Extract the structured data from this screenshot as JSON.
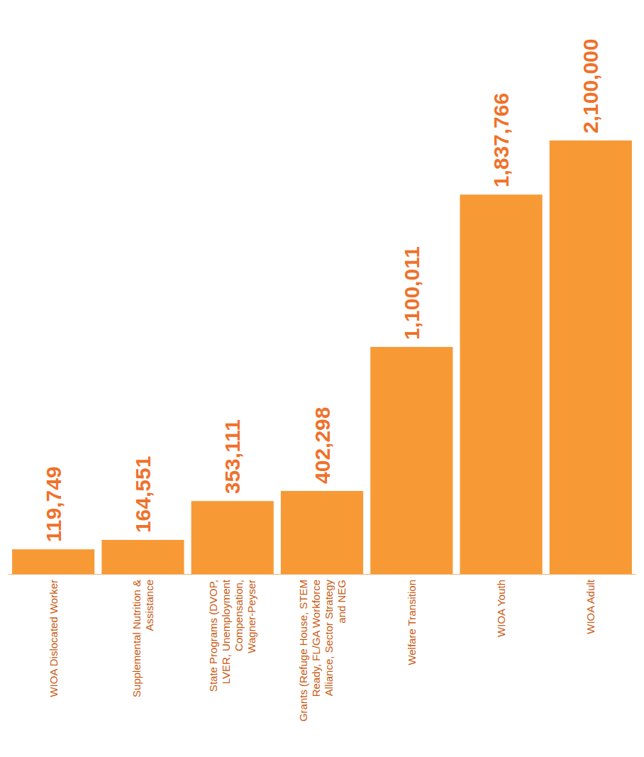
{
  "chart_data": {
    "type": "bar",
    "categories": [
      "WIOA Dislocated Worker",
      "Supplemental Nutrition & Assistance",
      "State Programs (DVOP, LVER, Unemployment Compensation, Wagner-Peyser",
      "Grants (Refuge House, STEM Ready, FL/GA Workforce Alliance, Sector Strategy and NEG",
      "Welfare Transition",
      "WIOA Youth",
      "WIOA Adult"
    ],
    "values": [
      119749,
      164551,
      353111,
      402298,
      1100011,
      1837766,
      2100000
    ],
    "value_labels": [
      "119,749",
      "164,551",
      "353,111",
      "402,298",
      "1,100,011",
      "1,837,766",
      "2,100,000"
    ],
    "color": "#f79a36",
    "ylim": [
      0,
      2100000
    ],
    "data_labels": true,
    "tick_labels": "x",
    "grid": false
  }
}
